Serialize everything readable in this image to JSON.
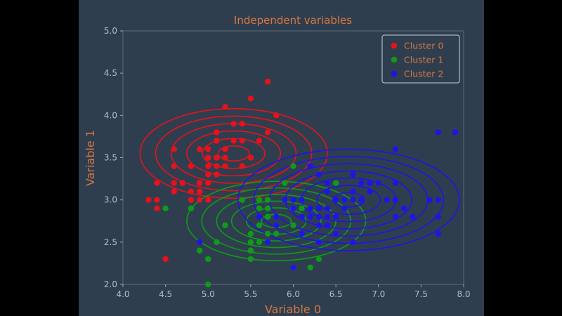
{
  "chart_data": {
    "type": "scatter",
    "title": "Independent variables",
    "xlabel": "Variable 0",
    "ylabel": "Variable 1",
    "xlim": [
      4.0,
      8.0
    ],
    "ylim": [
      2.0,
      5.0
    ],
    "xticks": [
      "4.0",
      "4.5",
      "5.0",
      "5.5",
      "6.0",
      "6.5",
      "7.0",
      "7.5",
      "8.0"
    ],
    "yticks": [
      "2.0",
      "2.5",
      "3.0",
      "3.5",
      "4.0",
      "4.5",
      "5.0"
    ],
    "legend_position": "top-right",
    "grid": false,
    "background": "#2e3e4f",
    "series": [
      {
        "name": "Cluster 0",
        "color": "#e8111c",
        "ellipse": {
          "cx": 5.3,
          "cy": 3.55,
          "rx": 1.1,
          "ry": 0.53,
          "levels": 6
        },
        "points": [
          [
            5.1,
            3.5
          ],
          [
            4.9,
            3.0
          ],
          [
            4.7,
            3.2
          ],
          [
            4.6,
            3.1
          ],
          [
            5.0,
            3.6
          ],
          [
            5.4,
            3.9
          ],
          [
            4.6,
            3.4
          ],
          [
            5.0,
            3.4
          ],
          [
            4.4,
            2.9
          ],
          [
            4.9,
            3.1
          ],
          [
            5.4,
            3.7
          ],
          [
            4.8,
            3.4
          ],
          [
            4.8,
            3.0
          ],
          [
            4.3,
            3.0
          ],
          [
            5.8,
            4.0
          ],
          [
            5.7,
            4.4
          ],
          [
            5.4,
            3.9
          ],
          [
            5.1,
            3.5
          ],
          [
            5.7,
            3.8
          ],
          [
            5.1,
            3.8
          ],
          [
            5.4,
            3.4
          ],
          [
            5.1,
            3.7
          ],
          [
            4.6,
            3.6
          ],
          [
            5.1,
            3.3
          ],
          [
            4.8,
            3.4
          ],
          [
            5.0,
            3.0
          ],
          [
            5.0,
            3.4
          ],
          [
            5.2,
            3.5
          ],
          [
            5.2,
            3.4
          ],
          [
            4.7,
            3.2
          ],
          [
            4.8,
            3.1
          ],
          [
            5.4,
            3.4
          ],
          [
            5.2,
            4.1
          ],
          [
            5.5,
            4.2
          ],
          [
            4.9,
            3.1
          ],
          [
            5.0,
            3.2
          ],
          [
            5.5,
            3.5
          ],
          [
            4.9,
            3.6
          ],
          [
            4.4,
            3.0
          ],
          [
            5.1,
            3.4
          ],
          [
            5.0,
            3.5
          ],
          [
            4.5,
            2.3
          ],
          [
            4.4,
            3.2
          ],
          [
            5.0,
            3.5
          ],
          [
            5.1,
            3.8
          ],
          [
            4.8,
            3.0
          ],
          [
            5.1,
            3.8
          ],
          [
            4.6,
            3.2
          ],
          [
            5.3,
            3.7
          ],
          [
            5.0,
            3.3
          ],
          [
            5.3,
            3.9
          ],
          [
            5.6,
            3.7
          ],
          [
            4.9,
            3.6
          ],
          [
            5.2,
            3.6
          ],
          [
            4.9,
            3.2
          ],
          [
            5.7,
            3.0
          ]
        ]
      },
      {
        "name": "Cluster 1",
        "color": "#0f9b18",
        "ellipse": {
          "cx": 5.8,
          "cy": 2.75,
          "rx": 1.05,
          "ry": 0.47,
          "levels": 6
        },
        "points": [
          [
            5.5,
            2.3
          ],
          [
            5.7,
            2.8
          ],
          [
            4.9,
            2.4
          ],
          [
            5.2,
            2.7
          ],
          [
            5.0,
            2.0
          ],
          [
            5.9,
            3.0
          ],
          [
            6.0,
            2.2
          ],
          [
            5.6,
            2.9
          ],
          [
            5.8,
            2.7
          ],
          [
            5.6,
            2.5
          ],
          [
            5.6,
            3.0
          ],
          [
            5.8,
            2.7
          ],
          [
            5.5,
            2.4
          ],
          [
            5.5,
            2.4
          ],
          [
            5.8,
            2.7
          ],
          [
            5.4,
            3.0
          ],
          [
            5.6,
            3.0
          ],
          [
            5.5,
            2.5
          ],
          [
            5.5,
            2.6
          ],
          [
            5.0,
            2.3
          ],
          [
            5.6,
            2.7
          ],
          [
            5.7,
            3.0
          ],
          [
            5.7,
            2.9
          ],
          [
            5.1,
            2.5
          ],
          [
            5.7,
            2.8
          ],
          [
            4.9,
            2.5
          ],
          [
            5.7,
            2.5
          ],
          [
            5.8,
            2.8
          ],
          [
            6.0,
            2.9
          ],
          [
            6.3,
            2.3
          ],
          [
            6.1,
            2.8
          ],
          [
            6.2,
            2.2
          ],
          [
            6.4,
            2.9
          ],
          [
            6.1,
            3.0
          ],
          [
            6.6,
            3.0
          ],
          [
            5.9,
            3.2
          ],
          [
            6.3,
            3.3
          ],
          [
            6.5,
            3.0
          ],
          [
            6.0,
            3.4
          ],
          [
            4.5,
            2.9
          ],
          [
            5.2,
            2.7
          ],
          [
            6.5,
            3.2
          ],
          [
            4.8,
            2.9
          ],
          [
            5.7,
            2.6
          ],
          [
            6.2,
            2.8
          ],
          [
            6.0,
            2.7
          ],
          [
            6.7,
            3.1
          ],
          [
            6.8,
            3.0
          ],
          [
            7.0,
            3.2
          ],
          [
            5.8,
            2.6
          ],
          [
            6.1,
            2.9
          ],
          [
            5.5,
            2.4
          ],
          [
            6.0,
            2.2
          ],
          [
            6.3,
            2.5
          ],
          [
            5.6,
            2.8
          ]
        ]
      },
      {
        "name": "Cluster 2",
        "color": "#1f14e6",
        "ellipse": {
          "cx": 6.65,
          "cy": 3.0,
          "rx": 1.3,
          "ry": 0.6,
          "levels": 7
        },
        "points": [
          [
            7.7,
            3.8
          ],
          [
            7.9,
            3.8
          ],
          [
            7.2,
            3.6
          ],
          [
            7.7,
            3.0
          ],
          [
            7.7,
            2.8
          ],
          [
            7.7,
            2.6
          ],
          [
            7.6,
            3.0
          ],
          [
            7.4,
            2.8
          ],
          [
            7.3,
            2.9
          ],
          [
            7.2,
            3.0
          ],
          [
            7.2,
            3.2
          ],
          [
            7.1,
            3.0
          ],
          [
            6.9,
            3.1
          ],
          [
            6.9,
            3.2
          ],
          [
            6.8,
            3.2
          ],
          [
            6.7,
            3.3
          ],
          [
            6.7,
            3.1
          ],
          [
            6.7,
            3.0
          ],
          [
            6.7,
            2.5
          ],
          [
            6.5,
            3.0
          ],
          [
            6.5,
            2.8
          ],
          [
            6.4,
            3.1
          ],
          [
            6.4,
            3.2
          ],
          [
            6.4,
            2.8
          ],
          [
            6.3,
            2.9
          ],
          [
            6.3,
            3.3
          ],
          [
            6.3,
            2.7
          ],
          [
            6.2,
            3.4
          ],
          [
            6.1,
            2.6
          ],
          [
            6.0,
            3.0
          ],
          [
            6.0,
            2.2
          ],
          [
            5.9,
            3.0
          ],
          [
            5.8,
            2.8
          ],
          [
            5.8,
            2.7
          ],
          [
            5.7,
            2.5
          ],
          [
            5.6,
            2.8
          ],
          [
            4.9,
            2.5
          ],
          [
            6.4,
            2.7
          ],
          [
            6.1,
            3.0
          ],
          [
            6.3,
            2.5
          ],
          [
            6.9,
            3.1
          ],
          [
            7.2,
            3.0
          ],
          [
            6.5,
            3.0
          ],
          [
            6.8,
            3.0
          ],
          [
            7.7,
            3.0
          ],
          [
            6.0,
            2.9
          ],
          [
            6.6,
            2.9
          ],
          [
            6.2,
            2.9
          ],
          [
            6.3,
            2.8
          ],
          [
            6.5,
            2.6
          ],
          [
            7.0,
            3.2
          ],
          [
            6.1,
            2.8
          ],
          [
            6.4,
            2.9
          ],
          [
            6.6,
            3.0
          ],
          [
            5.8,
            2.8
          ],
          [
            7.2,
            2.8
          ],
          [
            7.3,
            2.9
          ],
          [
            6.2,
            2.8
          ]
        ]
      }
    ]
  },
  "colors": {
    "axis_text": "#d9783e",
    "tick_text": "#b4bcc6"
  }
}
